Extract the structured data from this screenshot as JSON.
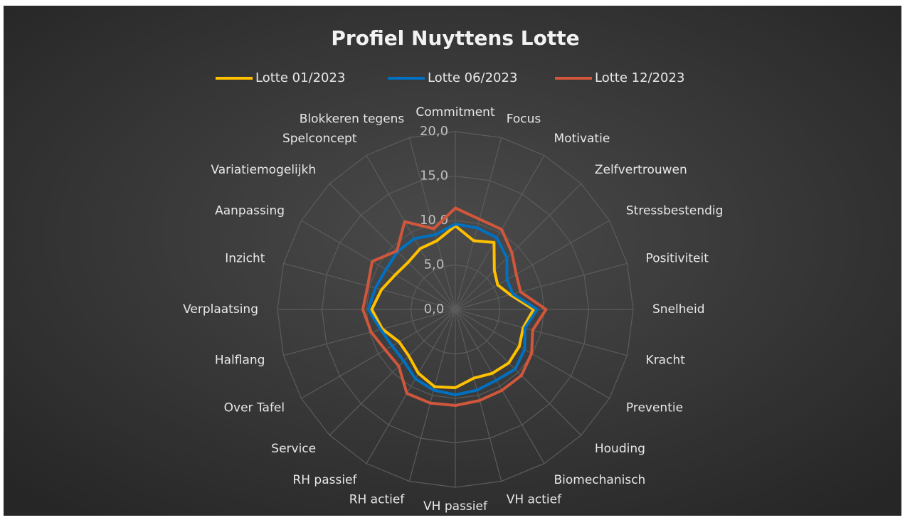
{
  "chart_data": {
    "type": "radar",
    "title": "Profiel Nuyttens Lotte",
    "categories": [
      "Commitment",
      "Focus",
      "Motivatie",
      "Zelfvertrouwen",
      "Stressbestendig",
      "Positiviteit",
      "Snelheid",
      "Kracht",
      "Preventie",
      "Houding",
      "Biomechanisch",
      "VH actief",
      "VH passief",
      "RH actief",
      "RH passief",
      "Service",
      "Over Tafel",
      "Halflang",
      "Verplaatsing",
      "Inzicht",
      "Aanpassing",
      "Variatiemogelijkh",
      "Spelconcept",
      "Blokkeren tegens"
    ],
    "series": [
      {
        "name": "Lotte 01/2023",
        "color": "#ffc000",
        "values": [
          9.4,
          8.0,
          8.7,
          6.2,
          5.5,
          6.4,
          8.8,
          7.9,
          8.3,
          8.5,
          8.3,
          8.0,
          8.8,
          9.0,
          8.3,
          7.4,
          7.3,
          8.5,
          9.4,
          8.6,
          7.8,
          7.5,
          7.9,
          8.0
        ]
      },
      {
        "name": "Lotte 06/2023",
        "color": "#0070c0",
        "values": [
          9.6,
          9.5,
          9.3,
          8.2,
          6.7,
          6.7,
          9.2,
          8.1,
          9.0,
          9.5,
          9.2,
          9.4,
          9.6,
          9.4,
          9.0,
          8.2,
          8.2,
          8.7,
          9.8,
          9.3,
          9.0,
          9.2,
          9.2,
          8.7
        ]
      },
      {
        "name": "Lotte 12/2023",
        "color": "#d0573c",
        "values": [
          11.4,
          10.5,
          10.4,
          9.0,
          7.9,
          7.6,
          10.2,
          9.0,
          9.9,
          10.5,
          10.5,
          10.6,
          10.8,
          10.9,
          10.9,
          9.0,
          9.1,
          9.8,
          10.4,
          10.2,
          10.8,
          9.3,
          11.4,
          9.4
        ]
      }
    ],
    "ylim": [
      0,
      20
    ],
    "yticks": [
      {
        "value": 0,
        "label": "0,0"
      },
      {
        "value": 5,
        "label": "5,0"
      },
      {
        "value": 10,
        "label": "10,0"
      },
      {
        "value": 15,
        "label": "15,0"
      },
      {
        "value": 20,
        "label": "20,0"
      }
    ],
    "grid": true,
    "legend": "top"
  }
}
